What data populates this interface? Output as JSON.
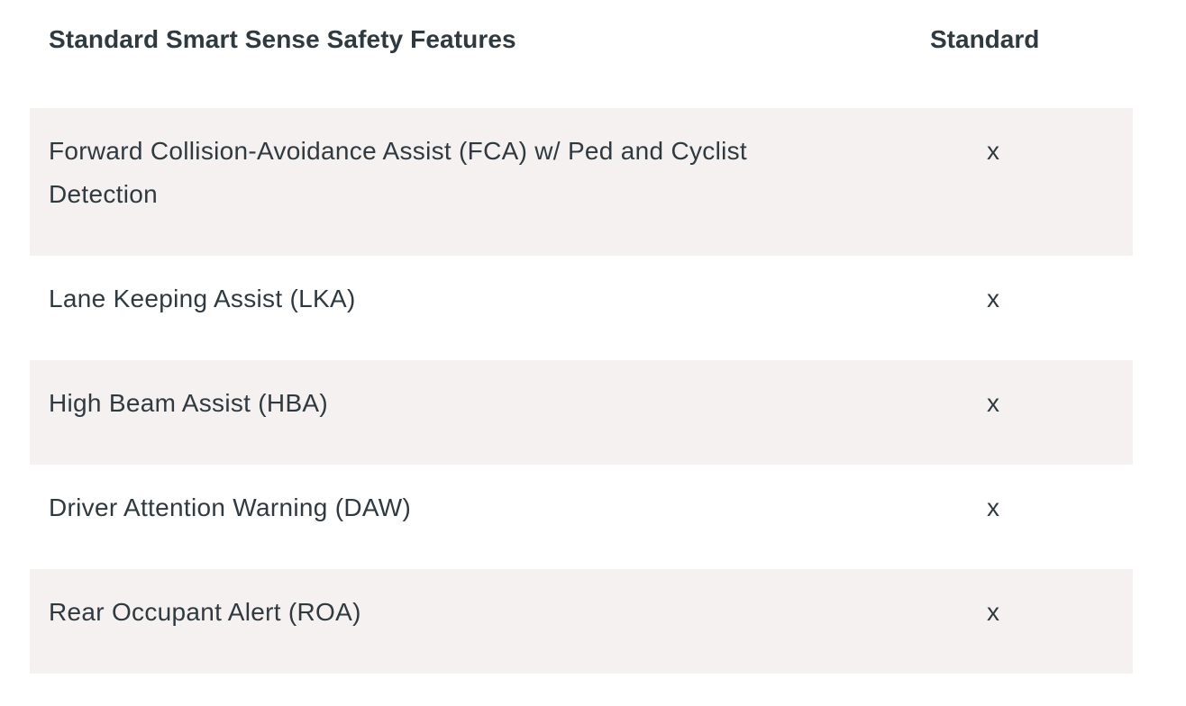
{
  "table": {
    "header": {
      "feature": "Standard Smart Sense Safety Features",
      "standard": "Standard"
    },
    "rows": [
      {
        "feature": "Forward Collision-Avoidance Assist (FCA) w/ Ped and Cyclist Detection",
        "standard": "x"
      },
      {
        "feature": "Lane Keeping Assist (LKA)",
        "standard": "x"
      },
      {
        "feature": "High Beam Assist (HBA)",
        "standard": "x"
      },
      {
        "feature": "Driver Attention Warning (DAW)",
        "standard": "x"
      },
      {
        "feature": "Rear Occupant Alert (ROA)",
        "standard": "x"
      }
    ]
  },
  "colors": {
    "text": "#2f3a40",
    "row_shade": "#f5f1f0",
    "background": "#ffffff"
  }
}
